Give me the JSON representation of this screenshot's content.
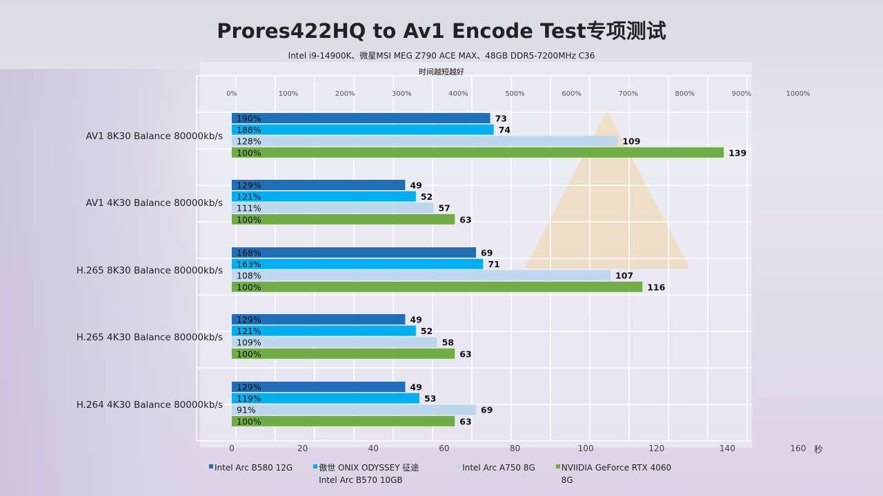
{
  "header": {
    "title": "Prores422HQ to Av1 Encode Test专项测试",
    "subtitle": "Intel i9-14900K、微星MSI  MEG Z790 ACE MAX、48GB DDR5-7200MHz  C36",
    "note": "时间越短越好"
  },
  "chart_data": {
    "type": "bar",
    "orientation": "horizontal",
    "title": "Prores422HQ to Av1 Encode Test专项测试",
    "xlabel": "秒",
    "xlim": [
      0,
      160
    ],
    "x_ticks": [
      "0",
      "20",
      "40",
      "60",
      "80",
      "100",
      "120",
      "140",
      "160"
    ],
    "top_ticks": [
      "0%",
      "100%",
      "200%",
      "300%",
      "400%",
      "500%",
      "600%",
      "700%",
      "800%",
      "900%",
      "1000%"
    ],
    "categories": [
      "AV1 8K30 Balance 80000kb/s",
      "AV1 4K30 Balance 80000kb/s",
      "H.265 8K30 Balance 80000kb/s",
      "H.265 4K30 Balance 80000kb/s",
      "H.264 4K30 Balance 80000kb/s"
    ],
    "series": [
      {
        "name": "Intel Arc B580 12G",
        "color": "#1f6fb8",
        "values": [
          73,
          49,
          69,
          49,
          49
        ],
        "pct": [
          "190%",
          "129%",
          "168%",
          "129%",
          "129%"
        ]
      },
      {
        "name": "傲世 ONIX  ODYSSEY 征途 Intel Arc B570 10GB",
        "color": "#00b0f0",
        "values": [
          74,
          52,
          71,
          52,
          53
        ],
        "pct": [
          "188%",
          "121%",
          "163%",
          "121%",
          "119%"
        ]
      },
      {
        "name": "Intel Arc A750 8G",
        "color": "#bdd7ee",
        "values": [
          109,
          57,
          107,
          58,
          69
        ],
        "pct": [
          "128%",
          "111%",
          "108%",
          "109%",
          "91%"
        ]
      },
      {
        "name": "NVIIDIA GeForce RTX 4060 8G",
        "color": "#70ad47",
        "values": [
          139,
          63,
          116,
          63,
          63
        ],
        "pct": [
          "100%",
          "100%",
          "100%",
          "100%",
          "100%"
        ]
      }
    ],
    "legend": "bottom"
  }
}
